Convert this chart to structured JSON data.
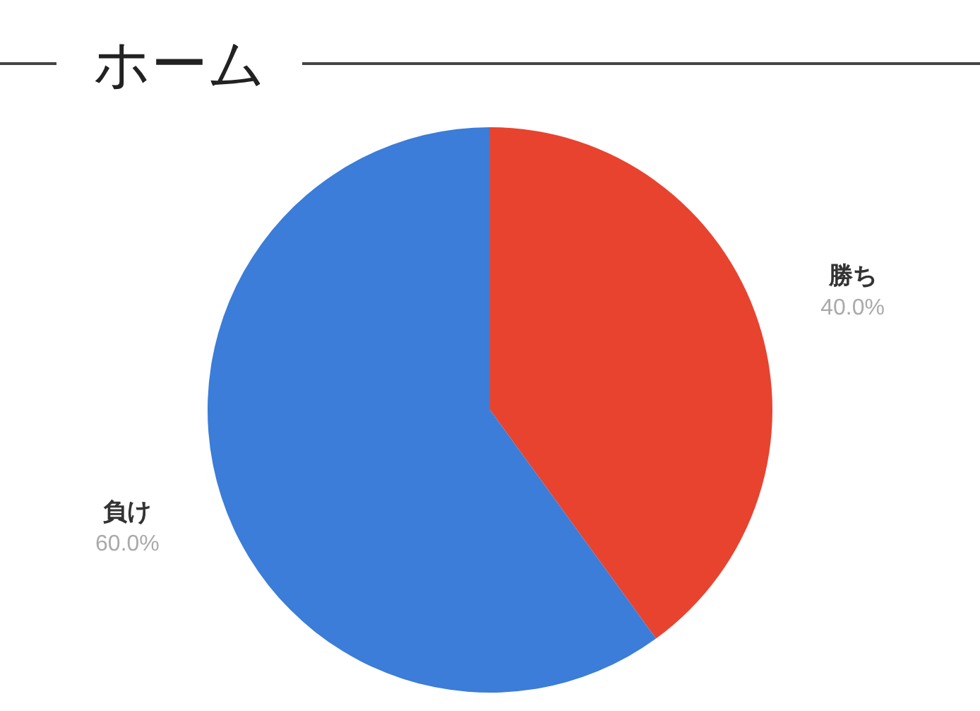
{
  "chart_data": {
    "type": "pie",
    "title": "ホーム",
    "categories": [
      "勝ち",
      "負け"
    ],
    "values": [
      40,
      60
    ],
    "colors": [
      "#e8432f",
      "#3b7dd8"
    ],
    "value_labels": [
      "40.0%",
      "60.0%"
    ]
  }
}
